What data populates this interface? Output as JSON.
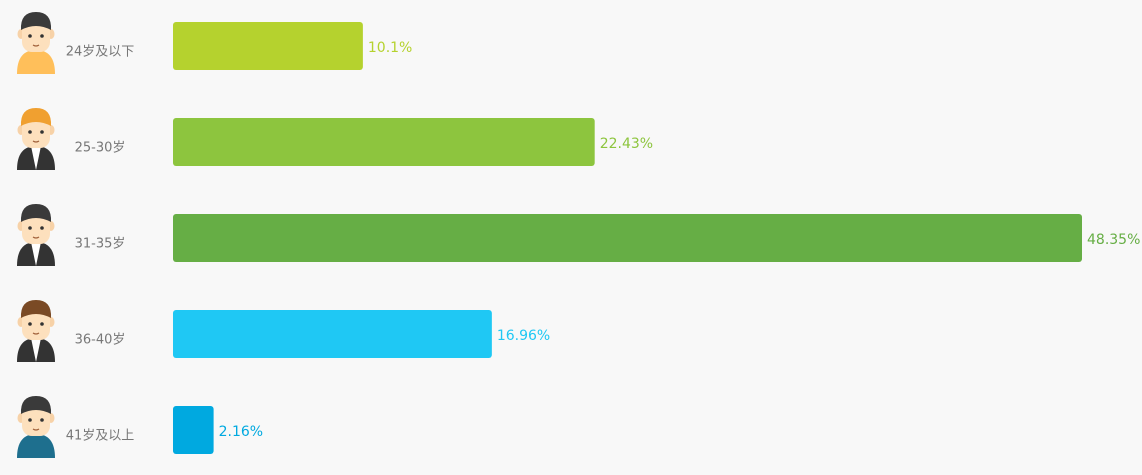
{
  "chart_data": {
    "type": "bar",
    "orientation": "horizontal",
    "categories": [
      "24岁及以下",
      "25-30岁",
      "31-35岁",
      "36-40岁",
      "41岁及以上"
    ],
    "values": [
      10.1,
      22.43,
      48.35,
      16.96,
      2.16
    ],
    "value_labels": [
      "10.1%",
      "22.43%",
      "48.35%",
      "16.96%",
      "2.16%"
    ],
    "colors": [
      "#b5d22e",
      "#8dc53e",
      "#66ae45",
      "#1fc8f4",
      "#00a9e0"
    ]
  }
}
